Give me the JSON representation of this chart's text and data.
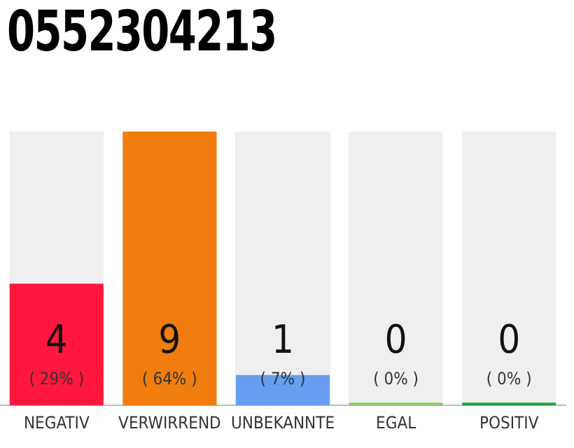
{
  "chart_data": {
    "type": "bar",
    "title": "0552304213",
    "categories": [
      "NEGATIV",
      "VERWIRREND",
      "UNBEKANNTE",
      "EGAL",
      "POSITIV"
    ],
    "values": [
      4,
      9,
      1,
      0,
      0
    ],
    "colors": [
      "#ff173d",
      "#f07d0d",
      "#679ef0",
      "#8bc867",
      "#23a246"
    ],
    "ylim": [
      0,
      9
    ],
    "tick_labels": "x",
    "grid": false,
    "legend": false,
    "data_labels": true,
    "annotations": [
      "( 29% )",
      "( 64% )",
      "( 7% )",
      "( 0% )",
      "( 0% )"
    ]
  }
}
